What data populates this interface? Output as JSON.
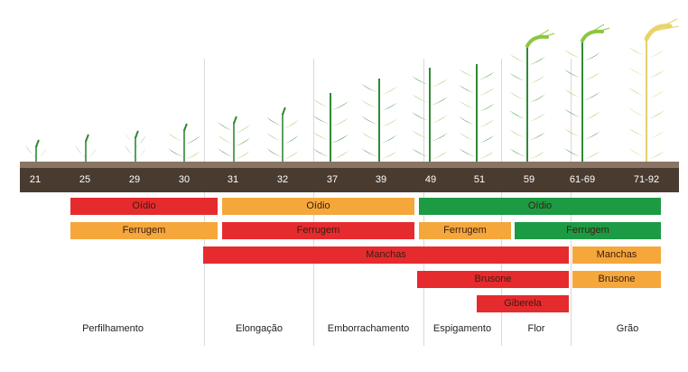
{
  "colors": {
    "red": "#e62b2e",
    "orange": "#f5a73c",
    "green": "#1d9a44",
    "bar": "#4a3b30",
    "bar_top": "#8a7464",
    "plant_green": "#2f8a33",
    "plant_light": "#8cc63f",
    "plant_ripe": "#e2cf6d"
  },
  "stages": [
    "21",
    "25",
    "29",
    "30",
    "31",
    "32",
    "37",
    "39",
    "49",
    "51",
    "59",
    "61-69",
    "71-92"
  ],
  "phases": [
    "Perfilhamento",
    "Elongação",
    "Emborrachamento",
    "Espigamento",
    "Flor",
    "Grão"
  ],
  "diseases": [
    {
      "label": "Oídio",
      "color": "red"
    },
    {
      "label": "Oídio",
      "color": "orange"
    },
    {
      "label": "Oídio",
      "color": "green"
    },
    {
      "label": "Ferrugem",
      "color": "orange"
    },
    {
      "label": "Ferrugem",
      "color": "red"
    },
    {
      "label": "Ferrugem",
      "color": "orange"
    },
    {
      "label": "Ferrugem",
      "color": "green"
    },
    {
      "label": "Manchas",
      "color": "red"
    },
    {
      "label": "Manchas",
      "color": "orange"
    },
    {
      "label": "Brusone",
      "color": "red"
    },
    {
      "label": "Brusone",
      "color": "orange"
    },
    {
      "label": "Giberela",
      "color": "red"
    }
  ]
}
